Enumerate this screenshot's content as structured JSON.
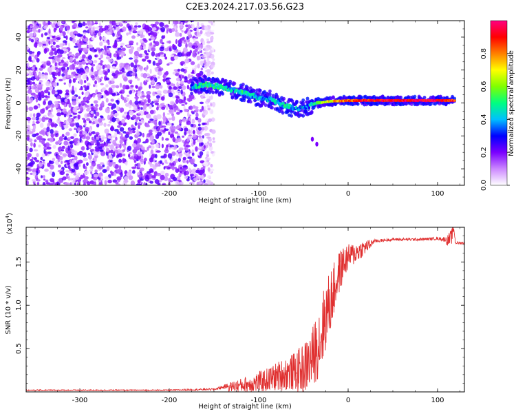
{
  "page_title": "C2E3.2024.217.03.56.G23",
  "chart_data": [
    {
      "type": "heatmap",
      "title": "C2E3.2024.217.03.56.G23",
      "xlabel": "Height of straight line (km)",
      "ylabel": "Frequency (Hz)",
      "xlim": [
        -360,
        130
      ],
      "ylim": [
        -50,
        50
      ],
      "xticks": [
        -300,
        -200,
        -100,
        0,
        100
      ],
      "yticks": [
        -40,
        -20,
        0,
        20,
        40
      ],
      "xtick_labels": [
        "-300",
        "-200",
        "-100",
        "0",
        "100"
      ],
      "ytick_labels": [
        "-40",
        "-20",
        "0",
        "20",
        "40"
      ],
      "colorbar": {
        "label": "Normalized spectral amplitude",
        "range": [
          0,
          1
        ],
        "ticks": [
          "0.0",
          "0.2",
          "0.4",
          "0.6",
          "0.8"
        ],
        "colors": [
          "#ffffff",
          "#cc88ff",
          "#7a00ff",
          "#0000ff",
          "#00c0ff",
          "#00ff80",
          "#80ff00",
          "#ffff00",
          "#ff8000",
          "#ff0000",
          "#ff0080"
        ]
      },
      "noise_region_x": [
        -360,
        -150
      ],
      "ridge_points": [
        {
          "x": -175,
          "y": 10,
          "v": 0.35
        },
        {
          "x": -160,
          "y": 11,
          "v": 0.5
        },
        {
          "x": -145,
          "y": 10,
          "v": 0.5
        },
        {
          "x": -130,
          "y": 8,
          "v": 0.45
        },
        {
          "x": -115,
          "y": 6,
          "v": 0.45
        },
        {
          "x": -100,
          "y": 3,
          "v": 0.4
        },
        {
          "x": -85,
          "y": 2,
          "v": 0.45
        },
        {
          "x": -70,
          "y": -2,
          "v": 0.45
        },
        {
          "x": -55,
          "y": -4,
          "v": 0.4
        },
        {
          "x": -45,
          "y": -2,
          "v": 0.35
        },
        {
          "x": -35,
          "y": 0,
          "v": 0.5
        },
        {
          "x": -20,
          "y": 1,
          "v": 0.7
        },
        {
          "x": 0,
          "y": 1.5,
          "v": 0.85
        },
        {
          "x": 30,
          "y": 1.5,
          "v": 0.9
        },
        {
          "x": 60,
          "y": 1.5,
          "v": 0.95
        },
        {
          "x": 90,
          "y": 1.5,
          "v": 0.95
        },
        {
          "x": 120,
          "y": 1.5,
          "v": 0.9
        }
      ],
      "branch_points": [
        {
          "x": -40,
          "y": -22,
          "v": 0.2
        },
        {
          "x": -35,
          "y": -25,
          "v": 0.2
        }
      ]
    },
    {
      "type": "line",
      "xlabel": "Height of straight line (km)",
      "ylabel": "SNR (10 * v/v)",
      "multiplier": "(x10",
      "multiplier_exp": "4",
      "multiplier_close": ")",
      "xlim": [
        -360,
        130
      ],
      "ylim": [
        0,
        1.9
      ],
      "xticks": [
        -300,
        -200,
        -100,
        0,
        100
      ],
      "yticks": [
        0.5,
        1.0,
        1.5
      ],
      "xtick_labels": [
        "-300",
        "-200",
        "-100",
        "0",
        "100"
      ],
      "ytick_labels": [
        "0.5",
        "1.0",
        "1.5"
      ],
      "color": "#e03030",
      "series": [
        {
          "x": [
            -360,
            -300,
            -200,
            -150,
            -130,
            -110,
            -90,
            -75,
            -60,
            -50,
            -40,
            -30,
            -25,
            -20,
            -15,
            -10,
            -5,
            0,
            10,
            20,
            30,
            40,
            50,
            60,
            80,
            100,
            110,
            115,
            118,
            120,
            125,
            130
          ],
          "y": [
            0.02,
            0.02,
            0.02,
            0.03,
            0.08,
            0.12,
            0.18,
            0.25,
            0.3,
            0.35,
            0.5,
            0.8,
            1.0,
            1.15,
            1.3,
            1.45,
            1.55,
            1.6,
            1.65,
            1.7,
            1.74,
            1.75,
            1.76,
            1.76,
            1.76,
            1.77,
            1.76,
            1.8,
            1.9,
            1.72,
            1.72,
            1.72
          ],
          "noise": [
            0,
            0,
            0,
            0.01,
            0.06,
            0.1,
            0.14,
            0.18,
            0.22,
            0.3,
            0.35,
            0.45,
            0.4,
            0.38,
            0.3,
            0.25,
            0.2,
            0.15,
            0.12,
            0.08,
            0.03,
            0.02,
            0.02,
            0.02,
            0.02,
            0.02,
            0.05,
            0.1,
            0.05,
            0.02,
            0.02,
            0.02
          ]
        }
      ]
    }
  ]
}
